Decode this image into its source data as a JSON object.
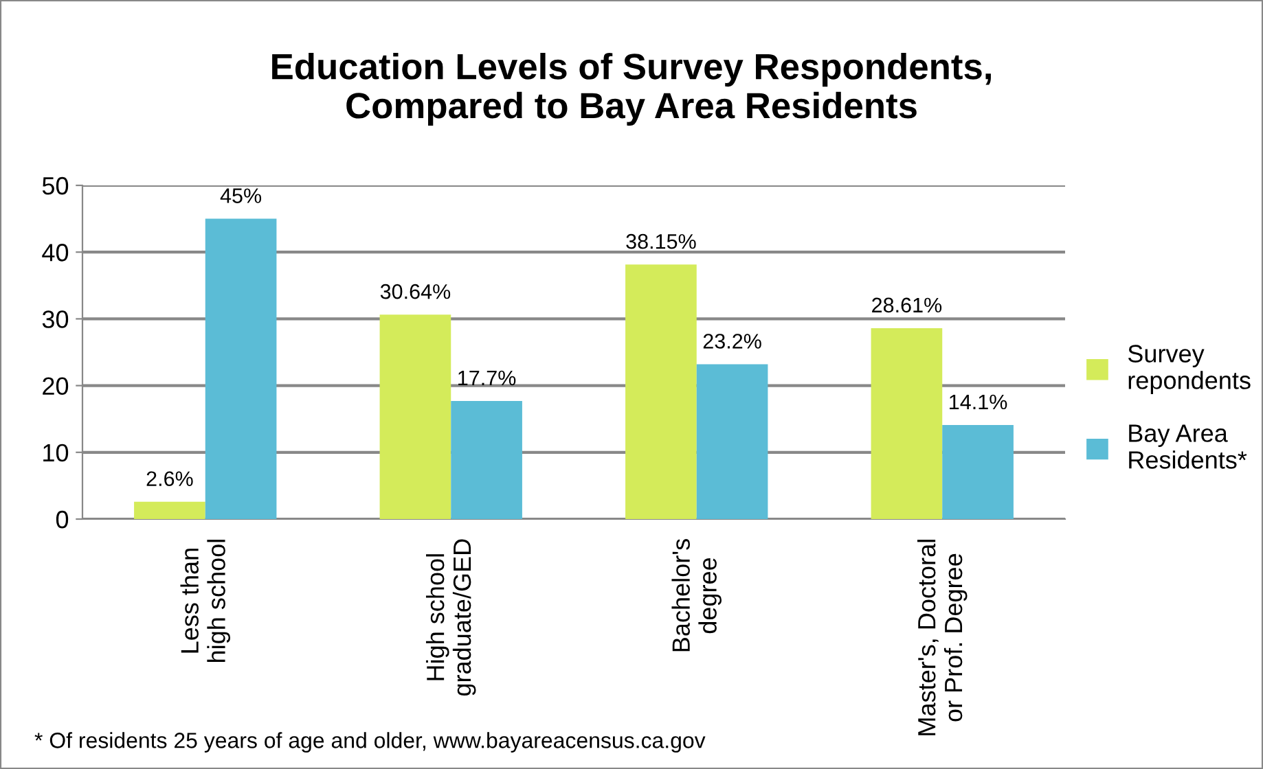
{
  "chart_data": {
    "type": "bar",
    "title": "Education Levels of Survey Respondents,\nCompared to Bay Area Residents",
    "categories": [
      "Less than\nhigh school",
      "High school\ngraduate/GED",
      "Bachelor's\ndegree",
      "Master's, Doctoral\nor Prof. Degree"
    ],
    "series": [
      {
        "name": "Survey\nrepondents",
        "color": "#d4eb5a",
        "values": [
          2.6,
          30.64,
          38.15,
          28.61
        ],
        "value_labels": [
          "2.6%",
          "30.64%",
          "38.15%",
          "28.61%"
        ]
      },
      {
        "name": "Bay Area\nResidents*",
        "color": "#5bbcd6",
        "values": [
          45,
          17.7,
          23.2,
          14.1
        ],
        "value_labels": [
          "45%",
          "17.7%",
          "23.2%",
          "14.1%"
        ]
      }
    ],
    "ylim": [
      0,
      50
    ],
    "yticks": [
      0,
      10,
      20,
      30,
      40,
      50
    ],
    "grid": "y",
    "legend": "right",
    "annotations": [
      "* Of residents 25 years of age and older, www.bayareacensus.ca.gov"
    ]
  }
}
